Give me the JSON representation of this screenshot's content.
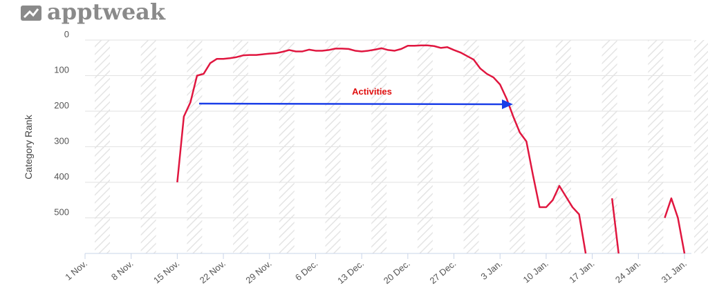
{
  "brand": "apptweak",
  "chart_data": {
    "type": "line",
    "y_label": "Category Rank",
    "annotation": "Activities",
    "ylim": [
      0,
      600
    ],
    "y_reversed": true,
    "yticks": [
      0,
      100,
      200,
      300,
      400,
      500
    ],
    "grid": true,
    "xlim": [
      0,
      91
    ],
    "xticks": [
      {
        "value": 0,
        "label": "1 Nov."
      },
      {
        "value": 7,
        "label": "8 Nov."
      },
      {
        "value": 14,
        "label": "15 Nov."
      },
      {
        "value": 21,
        "label": "22 Nov."
      },
      {
        "value": 28,
        "label": "29 Nov."
      },
      {
        "value": 35,
        "label": "6 Dec."
      },
      {
        "value": 42,
        "label": "13 Dec."
      },
      {
        "value": 49,
        "label": "20 Dec."
      },
      {
        "value": 56,
        "label": "27 Dec."
      },
      {
        "value": 63,
        "label": "3 Jan."
      },
      {
        "value": 70,
        "label": "10 Jan."
      },
      {
        "value": 77,
        "label": "17 Jan."
      },
      {
        "value": 84,
        "label": "24 Jan."
      },
      {
        "value": 91,
        "label": "31 Jan."
      }
    ],
    "x": [
      14,
      15,
      16,
      17,
      18,
      19,
      20,
      21,
      22,
      23,
      24,
      25,
      26,
      27,
      28,
      29,
      30,
      31,
      32,
      33,
      34,
      35,
      36,
      37,
      38,
      39,
      40,
      41,
      42,
      43,
      44,
      45,
      46,
      47,
      48,
      49,
      50,
      51,
      52,
      53,
      54,
      55,
      56,
      57,
      58,
      59,
      60,
      61,
      62,
      63,
      64,
      65,
      66,
      67,
      68,
      69,
      70,
      71,
      72,
      73,
      74,
      75,
      76,
      77,
      78,
      79,
      80,
      81,
      82,
      83,
      84,
      85,
      86,
      87,
      88,
      89,
      90,
      91
    ],
    "series": [
      {
        "color": "#e0163f",
        "values": [
          400,
          215,
          175,
          100,
          95,
          65,
          53,
          53,
          51,
          48,
          43,
          42,
          42,
          40,
          38,
          37,
          33,
          28,
          32,
          32,
          27,
          30,
          30,
          28,
          24,
          24,
          25,
          30,
          32,
          30,
          27,
          23,
          28,
          30,
          25,
          16,
          16,
          15,
          15,
          17,
          22,
          20,
          28,
          35,
          45,
          55,
          80,
          95,
          105,
          125,
          165,
          215,
          260,
          285,
          380,
          470,
          470,
          450,
          410,
          440,
          470,
          490,
          600,
          null,
          null,
          null,
          445,
          600,
          null,
          null,
          null,
          null,
          null,
          null,
          500,
          445,
          500,
          600
        ]
      }
    ]
  }
}
